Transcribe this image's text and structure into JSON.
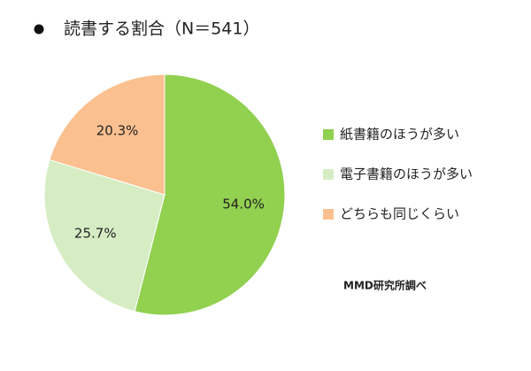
{
  "chart_data": {
    "type": "pie",
    "title": "読書する割合（N＝541）",
    "categories": [
      "紙書籍のほうが多い",
      "電子書籍のほうが多い",
      "どちらも同じくらい"
    ],
    "values": [
      54.0,
      25.7,
      20.3
    ],
    "value_labels": [
      "54.0%",
      "25.7%",
      "20.3%"
    ],
    "colors": [
      "#92d050",
      "#d6edc4",
      "#fac090"
    ],
    "source": "MMD研究所調べ"
  }
}
